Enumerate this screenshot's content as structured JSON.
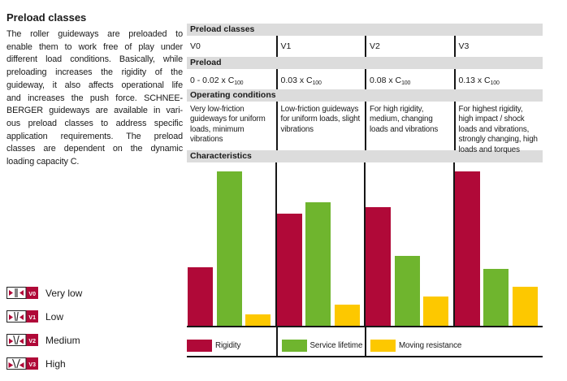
{
  "colors": {
    "rigidity": "#b00938",
    "service_lifetime": "#6fb52e",
    "moving_resistance": "#fdc800",
    "band_gray": "#dcdcdc",
    "line_dark": "#161616",
    "text_dark": "#1a1a1a"
  },
  "intro": {
    "title": "Preload classes",
    "lines": [
      "The roller guideways are preloaded to",
      "enable them to work free of play under",
      "different load conditions. Basically, while",
      "preloading increases the rigidity of the",
      "guideway, it also affects operational life",
      "and increases the push force. SCHNEE-",
      "BERGER guideways are available in vari-",
      "ous preload classes to address specific",
      "application requirements. The preload",
      "classes are dependent on the dynamic",
      "loading capacity C."
    ]
  },
  "class_legend": {
    "items": [
      {
        "code": "V0",
        "label": "Very low"
      },
      {
        "code": "V1",
        "label": "Low"
      },
      {
        "code": "V2",
        "label": "Medium"
      },
      {
        "code": "V3",
        "label": "High"
      }
    ]
  },
  "table": {
    "headers": {
      "classes": "Preload classes",
      "preload": "Preload",
      "operating": "Operating conditions",
      "characteristics": "Characteristics"
    },
    "columns": [
      {
        "class": "V0",
        "preload_base": "0 - 0.02 x C",
        "preload_sub": "100",
        "conditions": "Very low-friction guideways for uniform loads, minimum vibrations"
      },
      {
        "class": "V1",
        "preload_base": "0.03 x C",
        "preload_sub": "100",
        "conditions": "Low-friction guideways for uniform loads, slight vibrations"
      },
      {
        "class": "V2",
        "preload_base": "0.08 x C",
        "preload_sub": "100",
        "conditions": "For high rigidity, medium, changing loads and vibrations"
      },
      {
        "class": "V3",
        "preload_base": "0.13 x C",
        "preload_sub": "100",
        "conditions": "For highest rigidity, high impact / shock loads and vibrations, strongly changing, high loads and torques"
      }
    ]
  },
  "chart_data": {
    "type": "bar",
    "title": "Characteristics",
    "categories": [
      "V0",
      "V1",
      "V2",
      "V3"
    ],
    "series": [
      {
        "name": "Rigidity",
        "color": "#b00938",
        "values": [
          36,
          69,
          73,
          95
        ]
      },
      {
        "name": "Service lifetime",
        "color": "#6fb52e",
        "values": [
          95,
          76,
          43,
          35
        ]
      },
      {
        "name": "Moving resistance",
        "color": "#fdc800",
        "values": [
          7,
          13,
          18,
          24
        ]
      }
    ],
    "ylim": [
      0,
      100
    ],
    "ylabel": "",
    "xlabel": "",
    "grid": false,
    "legend_position": "bottom",
    "note_units": "relative level, no numeric axis shown"
  }
}
